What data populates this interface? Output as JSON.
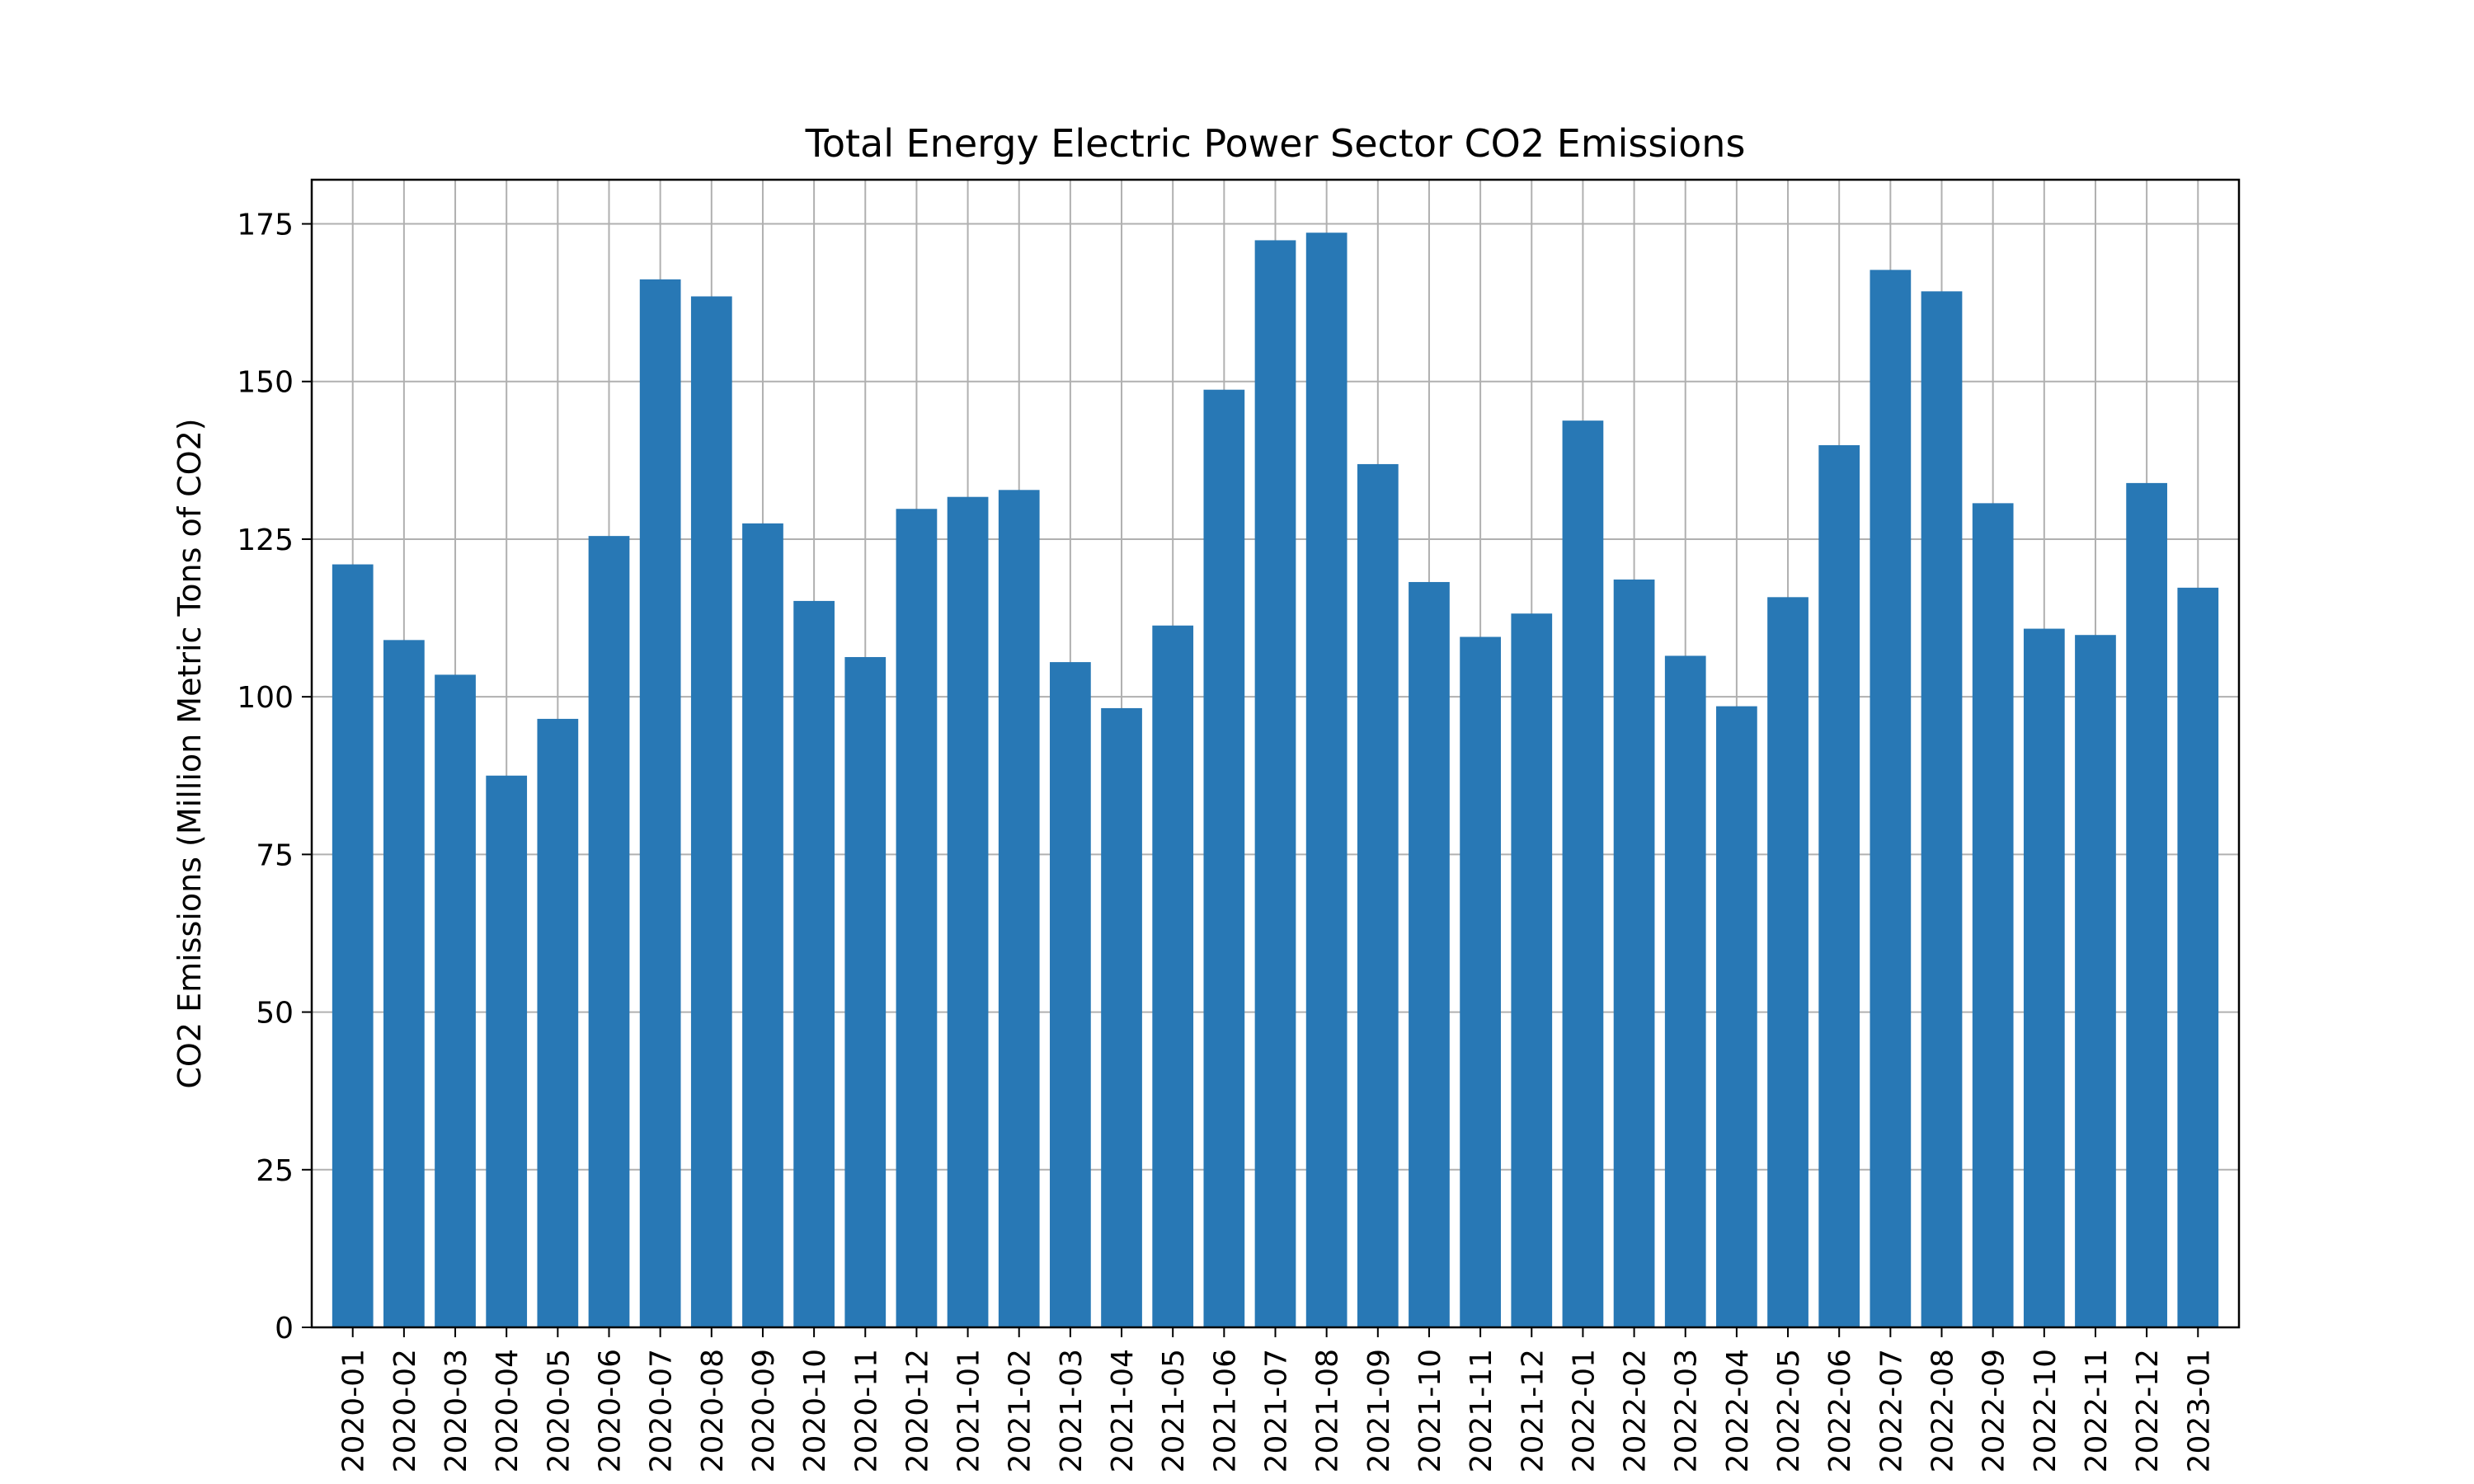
{
  "chart_data": {
    "type": "bar",
    "title": "Total Energy Electric Power Sector CO2 Emissions",
    "xlabel": "",
    "ylabel": "CO2 Emissions (Million Metric Tons of CO2)",
    "ylim": [
      0,
      182
    ],
    "yticks": [
      0,
      25,
      50,
      75,
      100,
      125,
      150,
      175
    ],
    "grid": true,
    "legend": "none",
    "bar_color": "#2878b5",
    "categories": [
      "2020-01",
      "2020-02",
      "2020-03",
      "2020-04",
      "2020-05",
      "2020-06",
      "2020-07",
      "2020-08",
      "2020-09",
      "2020-10",
      "2020-11",
      "2020-12",
      "2021-01",
      "2021-02",
      "2021-03",
      "2021-04",
      "2021-05",
      "2021-06",
      "2021-07",
      "2021-08",
      "2021-09",
      "2021-10",
      "2021-11",
      "2021-12",
      "2022-01",
      "2022-02",
      "2022-03",
      "2022-04",
      "2022-05",
      "2022-06",
      "2022-07",
      "2022-08",
      "2022-09",
      "2022-10",
      "2022-11",
      "2022-12",
      "2023-01"
    ],
    "values": [
      121,
      109,
      103.5,
      87.5,
      96.5,
      125.5,
      166.2,
      163.5,
      127.5,
      115.2,
      106.3,
      129.8,
      131.7,
      132.8,
      105.5,
      98.2,
      111.3,
      148.7,
      172.4,
      173.6,
      136.9,
      118.2,
      109.5,
      113.2,
      143.8,
      118.6,
      106.5,
      98.5,
      115.8,
      139.9,
      167.7,
      164.3,
      130.7,
      110.8,
      109.8,
      133.9,
      117.3
    ]
  }
}
